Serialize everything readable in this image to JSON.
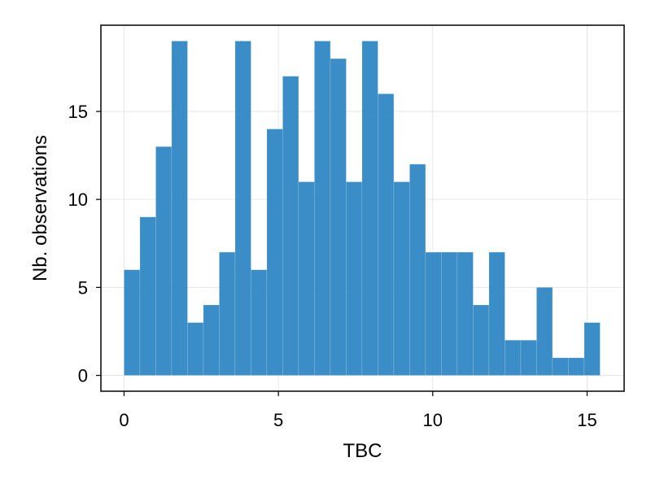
{
  "chart_data": {
    "type": "bar",
    "title": "",
    "xlabel": "TBC",
    "ylabel": "Nb. observations",
    "bin_start": 0,
    "bin_width": 0.514,
    "values": [
      6,
      9,
      13,
      19,
      3,
      4,
      7,
      19,
      6,
      14,
      17,
      11,
      19,
      18,
      11,
      19,
      16,
      11,
      12,
      7,
      7,
      7,
      4,
      7,
      2,
      2,
      5,
      1,
      1,
      3
    ],
    "xlim": [
      -0.75,
      16.2
    ],
    "ylim": [
      -0.9,
      19.9
    ],
    "x_ticks": [
      0,
      5,
      10,
      15
    ],
    "x_tick_labels": [
      "0",
      "5",
      "10",
      "15"
    ],
    "y_ticks": [
      0,
      5,
      10,
      15
    ],
    "y_tick_labels": [
      "0",
      "5",
      "10",
      "15"
    ],
    "grid": true,
    "bar_color": "#2581c0",
    "grid_color": "#e6e6e6"
  }
}
